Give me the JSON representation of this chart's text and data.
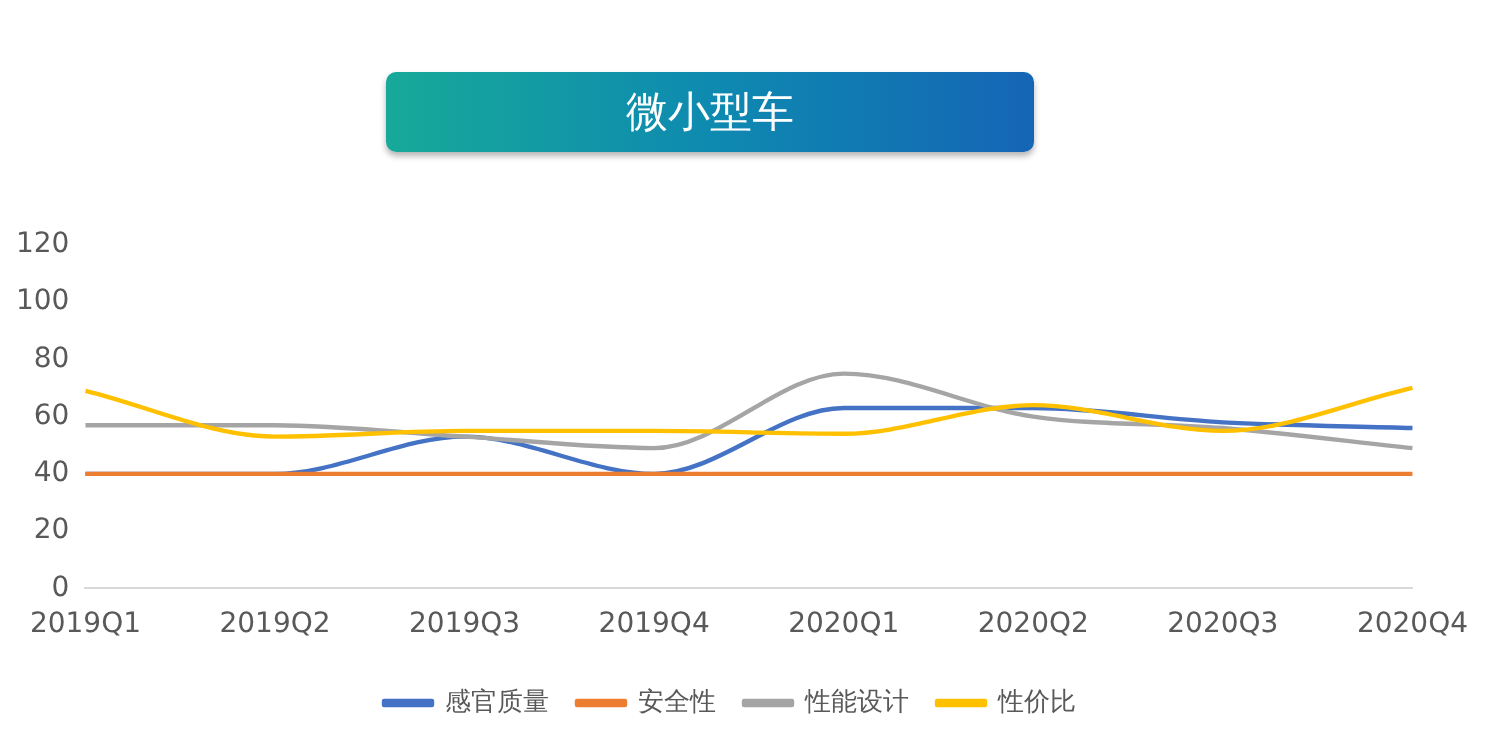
{
  "chart_data": {
    "type": "line",
    "title": "微小型车",
    "categories": [
      "2019Q1",
      "2019Q2",
      "2019Q3",
      "2019Q4",
      "2020Q1",
      "2020Q2",
      "2020Q3",
      "2020Q4"
    ],
    "series": [
      {
        "name": "感官质量",
        "color": "#4472c4",
        "values": [
          40,
          40,
          53,
          40,
          63,
          63,
          58,
          56
        ]
      },
      {
        "name": "安全性",
        "color": "#ed7d31",
        "values": [
          40,
          40,
          40,
          40,
          40,
          40,
          40,
          40
        ]
      },
      {
        "name": "性能设计",
        "color": "#a5a5a5",
        "values": [
          57,
          57,
          53,
          49,
          75,
          60,
          56,
          49
        ]
      },
      {
        "name": "性价比",
        "color": "#ffc000",
        "values": [
          69,
          53,
          55,
          55,
          54,
          64,
          55,
          70
        ]
      }
    ],
    "ylim": [
      0,
      120
    ],
    "yticks": [
      0,
      20,
      40,
      60,
      80,
      100,
      120
    ],
    "grid": false,
    "legend": "bottom",
    "marker": "none",
    "line_style": "solid"
  }
}
